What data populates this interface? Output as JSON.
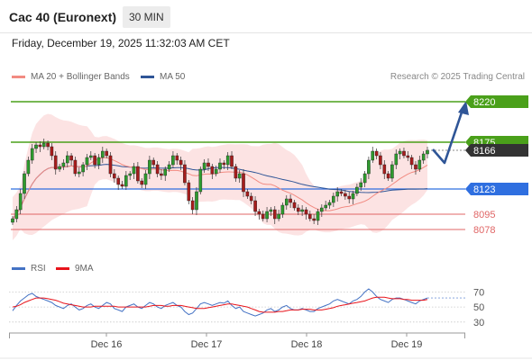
{
  "header": {
    "title": "Cac 40 (Euronext)",
    "timeframe": "30 MIN"
  },
  "datetime": "Friday, December 19, 2025 11:32:03 AM CET",
  "legend": {
    "ma20": {
      "label": "MA 20 + Bollinger Bands",
      "color": "#f28b82"
    },
    "ma50": {
      "label": "MA 50",
      "color": "#2f5597"
    }
  },
  "credit": "Research © 2025 Trading Central",
  "rsi_legend": {
    "rsi": {
      "label": "RSI",
      "color": "#4472c4"
    },
    "ma9": {
      "label": "9MA",
      "color": "#e8141b"
    }
  },
  "colors": {
    "bull": "#2e9b2e",
    "bear": "#a61c1c",
    "resistance": "#4aa01a",
    "support_blue": "#2f6fe0",
    "support_red": "#e06666",
    "arrow": "#2f5597"
  },
  "chart_data": {
    "type": "candlestick",
    "x_ticks": [
      "Dec 16",
      "Dec 17",
      "Dec 18",
      "Dec 19"
    ],
    "y_range": [
      8055,
      8240
    ],
    "last_price": 8166,
    "levels": [
      {
        "value": 8220,
        "label": "8220",
        "kind": "resistance"
      },
      {
        "value": 8175,
        "label": "8175",
        "kind": "resistance"
      },
      {
        "value": 8166,
        "label": "8166",
        "kind": "price"
      },
      {
        "value": 8123,
        "label": "8123",
        "kind": "pivot"
      },
      {
        "value": 8095,
        "label": "8095",
        "kind": "support"
      },
      {
        "value": 8078,
        "label": "8078",
        "kind": "support"
      }
    ],
    "closes": [
      8090,
      8100,
      8118,
      8140,
      8155,
      8168,
      8172,
      8170,
      8174,
      8170,
      8160,
      8145,
      8148,
      8152,
      8160,
      8155,
      8140,
      8142,
      8150,
      8158,
      8160,
      8150,
      8158,
      8165,
      8160,
      8140,
      8135,
      8128,
      8126,
      8138,
      8140,
      8148,
      8132,
      8128,
      8140,
      8155,
      8150,
      8140,
      8138,
      8145,
      8150,
      8160,
      8155,
      8150,
      8130,
      8110,
      8100,
      8120,
      8145,
      8152,
      8148,
      8140,
      8145,
      8152,
      8150,
      8160,
      8148,
      8135,
      8140,
      8120,
      8115,
      8110,
      8098,
      8095,
      8090,
      8098,
      8100,
      8090,
      8095,
      8105,
      8112,
      8108,
      8102,
      8098,
      8100,
      8095,
      8090,
      8088,
      8098,
      8102,
      8105,
      8108,
      8115,
      8120,
      8118,
      8115,
      8112,
      8118,
      8125,
      8130,
      8140,
      8155,
      8165,
      8160,
      8150,
      8140,
      8135,
      8150,
      8162,
      8165,
      8160,
      8158,
      8150,
      8145,
      8155,
      8162,
      8166
    ],
    "rsi": {
      "y_ticks": [
        70,
        50,
        30
      ],
      "rsi": [
        45,
        52,
        58,
        62,
        66,
        68,
        64,
        62,
        60,
        58,
        56,
        52,
        50,
        48,
        52,
        54,
        50,
        46,
        48,
        52,
        54,
        50,
        48,
        52,
        56,
        54,
        48,
        46,
        44,
        50,
        52,
        54,
        50,
        48,
        52,
        56,
        54,
        50,
        48,
        52,
        54,
        56,
        52,
        50,
        44,
        40,
        42,
        48,
        54,
        56,
        54,
        52,
        54,
        56,
        55,
        58,
        52,
        48,
        50,
        44,
        42,
        40,
        38,
        40,
        42,
        46,
        48,
        44,
        46,
        50,
        52,
        48,
        46,
        46,
        48,
        46,
        44,
        44,
        48,
        50,
        52,
        54,
        58,
        60,
        58,
        56,
        54,
        58,
        60,
        64,
        70,
        74,
        70,
        64,
        60,
        58,
        56,
        60,
        62,
        62,
        60,
        58,
        56,
        54,
        58,
        60,
        62
      ],
      "ma9": [
        50,
        51,
        53,
        56,
        58,
        60,
        62,
        62,
        62,
        61,
        60,
        59,
        57,
        55,
        54,
        53,
        52,
        51,
        50,
        50,
        50,
        51,
        51,
        51,
        51,
        51,
        51,
        50,
        50,
        50,
        50,
        50,
        50,
        50,
        50,
        51,
        52,
        52,
        52,
        51,
        51,
        52,
        52,
        52,
        51,
        50,
        49,
        48,
        48,
        48,
        49,
        50,
        51,
        52,
        53,
        54,
        54,
        53,
        52,
        51,
        50,
        48,
        46,
        44,
        43,
        43,
        43,
        43,
        44,
        44,
        45,
        46,
        46,
        46,
        47,
        47,
        47,
        46,
        46,
        46,
        47,
        48,
        49,
        51,
        52,
        53,
        54,
        55,
        56,
        57,
        58,
        60,
        62,
        63,
        63,
        63,
        62,
        61,
        61,
        61,
        60,
        60,
        59,
        59,
        59,
        59,
        60
      ]
    }
  }
}
